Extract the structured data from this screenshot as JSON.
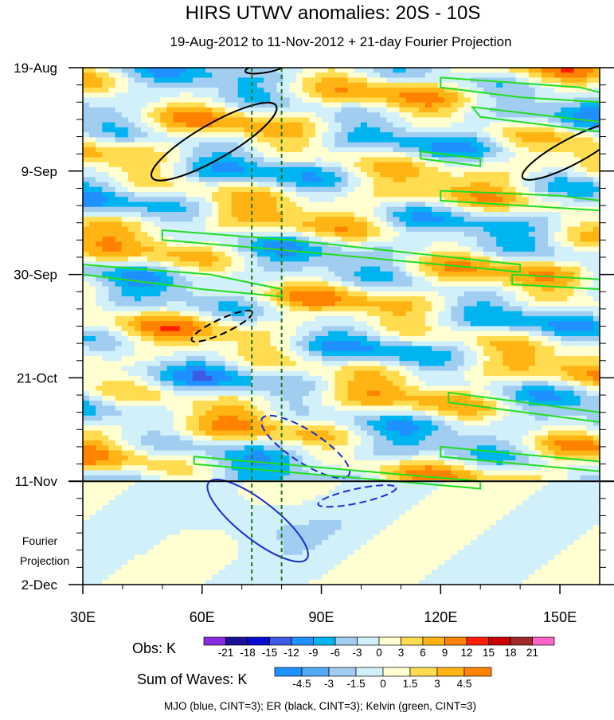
{
  "chart_data": {
    "type": "heatmap",
    "title": "HIRS UTWV anomalies: 20S - 10S",
    "subtitle": "19-Aug-2012 to 11-Nov-2012 + 21-day Fourier Projection",
    "x_axis": {
      "range": [
        30,
        160
      ],
      "ticks": [
        {
          "value": 30,
          "label": "30E"
        },
        {
          "value": 60,
          "label": "60E"
        },
        {
          "value": 90,
          "label": "90E"
        },
        {
          "value": 120,
          "label": "120E"
        },
        {
          "value": 150,
          "label": "150E"
        }
      ]
    },
    "y_axis": {
      "range_days": [
        0,
        105
      ],
      "ticks": [
        {
          "day": 0,
          "label": "19-Aug"
        },
        {
          "day": 21,
          "label": "9-Sep"
        },
        {
          "day": 42,
          "label": "30-Sep"
        },
        {
          "day": 63,
          "label": "21-Oct"
        },
        {
          "day": 84,
          "label": "11-Nov"
        },
        {
          "day": 105,
          "label": "2-Dec"
        }
      ]
    },
    "projection_label_line1": "Fourier",
    "projection_label_line2": "Projection",
    "projection_start_day": 84,
    "reference_lines_lon": [
      72.5,
      80
    ],
    "obs_colorbar": {
      "label": "Obs: K",
      "levels": [
        -21,
        -18,
        -15,
        -12,
        -9,
        -6,
        -3,
        0,
        3,
        6,
        9,
        12,
        15,
        18,
        21
      ],
      "level_labels": [
        "-21",
        "-18",
        "-15",
        "-12",
        "-9",
        "-6",
        "-3",
        "0",
        "3",
        "6",
        "9",
        "12",
        "15",
        "18",
        "21"
      ],
      "colors": [
        "#8a2be2",
        "#1a0f99",
        "#0a0ad2",
        "#3c5ae6",
        "#1e90ff",
        "#00b4f0",
        "#a0cdf0",
        "#d2f0fa",
        "#ffffd2",
        "#ffdc50",
        "#ffb414",
        "#ff8200",
        "#ff1e00",
        "#c80000",
        "#a02828",
        "#ff64c8"
      ]
    },
    "waves_colorbar": {
      "label": "Sum of Waves: K",
      "levels": [
        -4.5,
        -3,
        -1.5,
        0,
        1.5,
        3,
        4.5
      ],
      "level_labels": [
        "-4.5",
        "-3",
        "-1.5",
        "0",
        "1.5",
        "3",
        "4.5"
      ],
      "colors": [
        "#1e90ff",
        "#52aaf5",
        "#a0cdf0",
        "#d2f0fa",
        "#ffffd2",
        "#ffdc50",
        "#ffb414",
        "#ff8200"
      ]
    },
    "contour_legend": "MJO (blue, CINT=3); ER (black, CINT=3); Kelvin (green, CINT=3)",
    "series": [
      {
        "name": "MJO",
        "color": "#1a2bd6"
      },
      {
        "name": "ER",
        "color": "#000000"
      },
      {
        "name": "Kelvin",
        "color": "#22dd22"
      }
    ]
  }
}
